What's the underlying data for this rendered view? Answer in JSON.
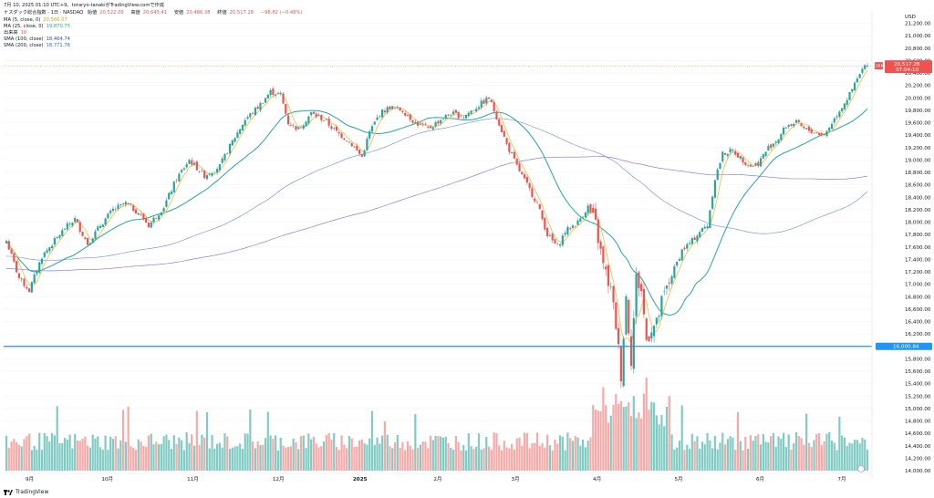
{
  "header": {
    "line1": "7月 10, 2025 01:10 UTC+9、toraryo-tanakiがTradingView.comで作成",
    "symbol": "ナスダック総合指数 · 1日 · NASDAQ",
    "open_label": "始値",
    "open": "20,522.09",
    "high_label": "高値",
    "high": "20,645.41",
    "low_label": "安値",
    "low": "20,486.38",
    "close_label": "終値",
    "close": "20,517.28",
    "change": "−98.82 (−0.48%)",
    "indicators": [
      {
        "name": "MA (5, close, 0)",
        "value": "20,566.07",
        "color": "#f2c14e"
      },
      {
        "name": "MA (25, close, 0)",
        "value": "19,870.75",
        "color": "#26a69a"
      },
      {
        "name": "出来高",
        "value": "10",
        "color": "#ef5350"
      },
      {
        "name": "SMA (100, close)",
        "value": "18,464.74",
        "color": "#3f51b5"
      },
      {
        "name": "SMA (200, close)",
        "value": "18,771.76",
        "color": "#2962ff"
      }
    ]
  },
  "axis": {
    "currency": "USD",
    "ticks": [
      "21,200.00",
      "21,000.00",
      "20,800.00",
      "20,600.00",
      "20,400.00",
      "20,200.00",
      "20,000.00",
      "19,800.00",
      "19,600.00",
      "19,400.00",
      "19,200.00",
      "19,000.00",
      "18,800.00",
      "18,600.00",
      "18,400.00",
      "18,200.00",
      "18,000.00",
      "17,800.00",
      "17,600.00",
      "17,400.00",
      "17,200.00",
      "17,000.00",
      "16,800.00",
      "16,600.00",
      "16,400.00",
      "16,200.00",
      "15,800.00",
      "15,600.00",
      "15,400.00",
      "15,200.00",
      "15,000.00",
      "14,800.00",
      "14,600.00",
      "14,400.00",
      "14,200.00",
      "14,000.00"
    ],
    "months": [
      "9月",
      "10月",
      "11月",
      "12月",
      "2025",
      "2月",
      "3月",
      "4月",
      "5月",
      "6月",
      "7月"
    ],
    "price_tag_symbol": "IXIC",
    "price_tag": "20,517.28",
    "countdown": "07:04:10",
    "hline_label": "16,000.84"
  },
  "chart_data": {
    "type": "candlestick",
    "title": "ナスダック総合指数 · 1日 · NASDAQ",
    "ylim": [
      14000,
      21400
    ],
    "last_close": 20517.28,
    "horizontal_line": 16000.84,
    "series": [
      {
        "name": "ナスダック総合指数",
        "type": "candlestick",
        "color_up": "#26a69a",
        "color_down": "#ef5350",
        "path": [
          [
            0,
            17700
          ],
          [
            5,
            17100
          ],
          [
            9,
            16900
          ],
          [
            14,
            17450
          ],
          [
            19,
            17700
          ],
          [
            23,
            17900
          ],
          [
            27,
            18050
          ],
          [
            32,
            17650
          ],
          [
            37,
            17950
          ],
          [
            42,
            18200
          ],
          [
            47,
            18300
          ],
          [
            52,
            18150
          ],
          [
            56,
            17950
          ],
          [
            62,
            18250
          ],
          [
            67,
            18700
          ],
          [
            72,
            19000
          ],
          [
            78,
            18750
          ],
          [
            84,
            18900
          ],
          [
            89,
            19300
          ],
          [
            94,
            19650
          ],
          [
            99,
            19850
          ],
          [
            104,
            20100
          ],
          [
            108,
            20050
          ],
          [
            111,
            19600
          ],
          [
            115,
            19500
          ],
          [
            120,
            19750
          ],
          [
            125,
            19650
          ],
          [
            130,
            19450
          ],
          [
            135,
            19300
          ],
          [
            140,
            19050
          ],
          [
            143,
            19450
          ],
          [
            147,
            19750
          ],
          [
            151,
            19850
          ],
          [
            156,
            19800
          ],
          [
            161,
            19600
          ],
          [
            166,
            19500
          ],
          [
            171,
            19650
          ],
          [
            175,
            19750
          ],
          [
            180,
            19700
          ],
          [
            185,
            19850
          ],
          [
            190,
            20000
          ],
          [
            193,
            19700
          ],
          [
            197,
            19250
          ],
          [
            201,
            18900
          ],
          [
            205,
            18600
          ],
          [
            209,
            18300
          ],
          [
            213,
            17800
          ],
          [
            217,
            17600
          ],
          [
            220,
            17850
          ],
          [
            225,
            18000
          ],
          [
            229,
            18250
          ],
          [
            232,
            17950
          ],
          [
            235,
            17300
          ],
          [
            238,
            16900
          ],
          [
            240,
            16350
          ],
          [
            242,
            15550
          ],
          [
            244,
            16800
          ],
          [
            246,
            15800
          ],
          [
            248,
            17100
          ],
          [
            250,
            16900
          ],
          [
            252,
            16100
          ],
          [
            254,
            16300
          ],
          [
            256,
            16350
          ],
          [
            258,
            16700
          ],
          [
            262,
            17150
          ],
          [
            266,
            17550
          ],
          [
            270,
            17700
          ],
          [
            273,
            17850
          ],
          [
            276,
            17950
          ],
          [
            279,
            18700
          ],
          [
            282,
            19100
          ],
          [
            286,
            19150
          ],
          [
            290,
            19000
          ],
          [
            293,
            18900
          ],
          [
            296,
            18950
          ],
          [
            300,
            19200
          ],
          [
            304,
            19350
          ],
          [
            307,
            19550
          ],
          [
            311,
            19600
          ],
          [
            314,
            19500
          ],
          [
            318,
            19450
          ],
          [
            322,
            19400
          ],
          [
            325,
            19600
          ],
          [
            328,
            19800
          ],
          [
            332,
            20050
          ],
          [
            335,
            20300
          ],
          [
            337,
            20450
          ],
          [
            339,
            20550
          ]
        ]
      },
      {
        "name": "MA (5, close, 0)",
        "type": "line",
        "color": "#f2c14e"
      },
      {
        "name": "MA (25, close, 0)",
        "type": "line",
        "color": "#26a69a"
      },
      {
        "name": "SMA (100, close)",
        "type": "line",
        "color": "#3f51b5"
      },
      {
        "name": "SMA (200, close)",
        "type": "line",
        "color": "#2962ff"
      },
      {
        "name": "出来高",
        "type": "bar",
        "color_up": "#26a69a",
        "color_down": "#ef5350"
      }
    ]
  }
}
